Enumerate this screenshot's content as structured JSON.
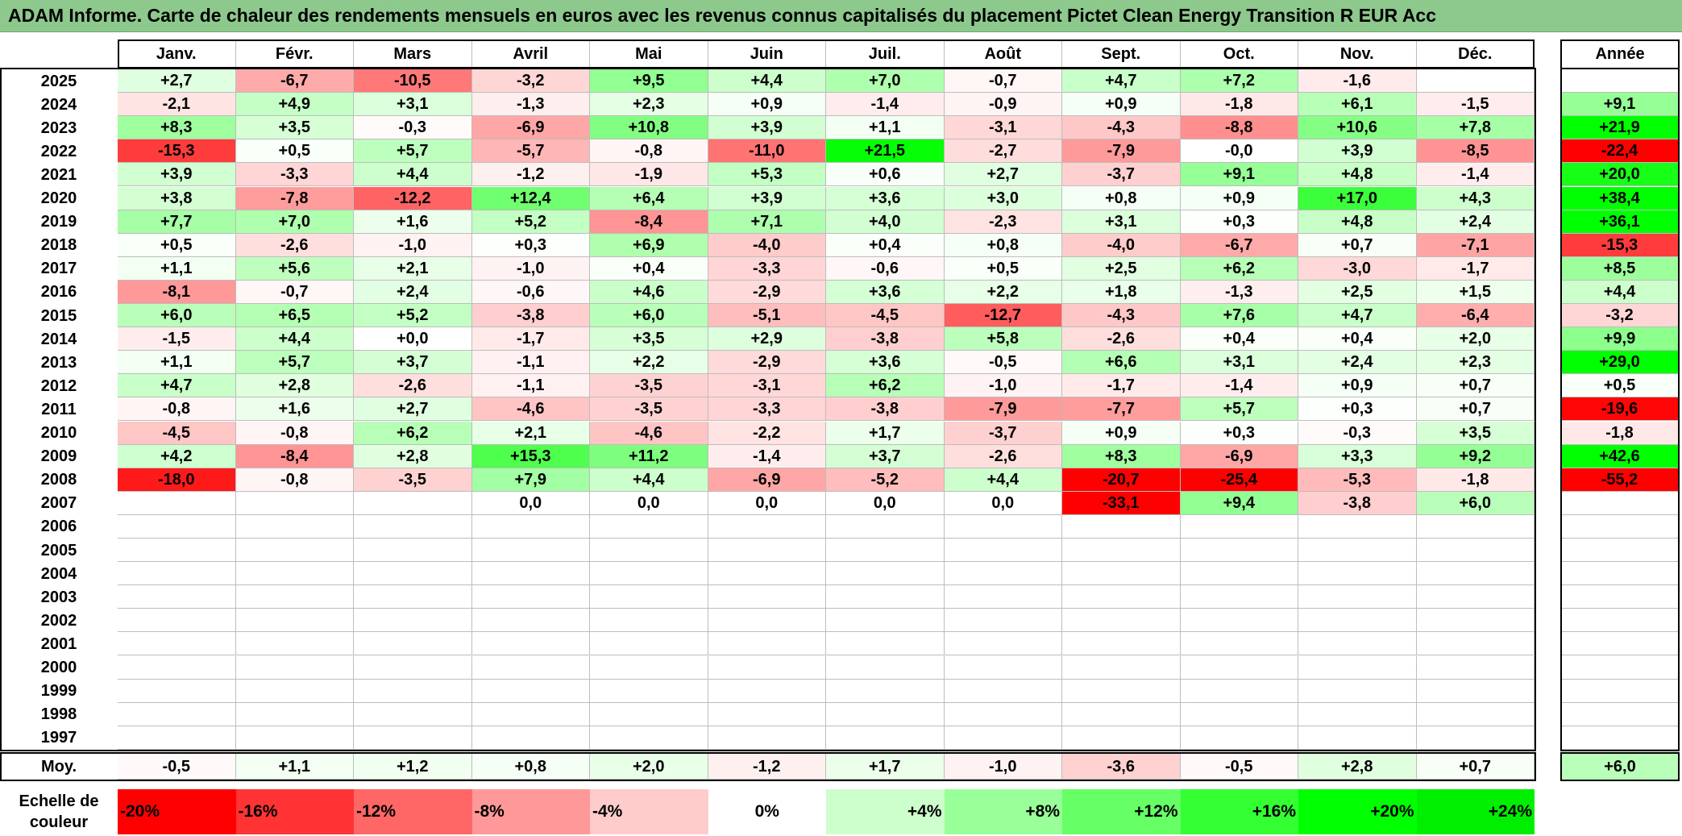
{
  "title": "ADAM Informe. Carte de chaleur des rendements mensuels en euros avec les revenus connus capitalisés du placement Pictet Clean Energy Transition R EUR Acc",
  "chart_data": {
    "type": "heatmap",
    "months": [
      "Janv.",
      "Févr.",
      "Mars",
      "Avril",
      "Mai",
      "Juin",
      "Juil.",
      "Août",
      "Sept.",
      "Oct.",
      "Nov.",
      "Déc."
    ],
    "year_header": "Année",
    "rows": [
      {
        "year": "2025",
        "values": [
          "+2,7",
          "-6,7",
          "-10,5",
          "-3,2",
          "+9,5",
          "+4,4",
          "+7,0",
          "-0,7",
          "+4,7",
          "+7,2",
          "-1,6",
          ""
        ],
        "annual": ""
      },
      {
        "year": "2024",
        "values": [
          "-2,1",
          "+4,9",
          "+3,1",
          "-1,3",
          "+2,3",
          "+0,9",
          "-1,4",
          "-0,9",
          "+0,9",
          "-1,8",
          "+6,1",
          "-1,5"
        ],
        "annual": "+9,1"
      },
      {
        "year": "2023",
        "values": [
          "+8,3",
          "+3,5",
          "-0,3",
          "-6,9",
          "+10,8",
          "+3,9",
          "+1,1",
          "-3,1",
          "-4,3",
          "-8,8",
          "+10,6",
          "+7,8"
        ],
        "annual": "+21,9"
      },
      {
        "year": "2022",
        "values": [
          "-15,3",
          "+0,5",
          "+5,7",
          "-5,7",
          "-0,8",
          "-11,0",
          "+21,5",
          "-2,7",
          "-7,9",
          "-0,0",
          "+3,9",
          "-8,5"
        ],
        "annual": "-22,4"
      },
      {
        "year": "2021",
        "values": [
          "+3,9",
          "-3,3",
          "+4,4",
          "-1,2",
          "-1,9",
          "+5,3",
          "+0,6",
          "+2,7",
          "-3,7",
          "+9,1",
          "+4,8",
          "-1,4"
        ],
        "annual": "+20,0"
      },
      {
        "year": "2020",
        "values": [
          "+3,8",
          "-7,8",
          "-12,2",
          "+12,4",
          "+6,4",
          "+3,9",
          "+3,6",
          "+3,0",
          "+0,8",
          "+0,9",
          "+17,0",
          "+4,3"
        ],
        "annual": "+38,4"
      },
      {
        "year": "2019",
        "values": [
          "+7,7",
          "+7,0",
          "+1,6",
          "+5,2",
          "-8,4",
          "+7,1",
          "+4,0",
          "-2,3",
          "+3,1",
          "+0,3",
          "+4,8",
          "+2,4"
        ],
        "annual": "+36,1"
      },
      {
        "year": "2018",
        "values": [
          "+0,5",
          "-2,6",
          "-1,0",
          "+0,3",
          "+6,9",
          "-4,0",
          "+0,4",
          "+0,8",
          "-4,0",
          "-6,7",
          "+0,7",
          "-7,1"
        ],
        "annual": "-15,3"
      },
      {
        "year": "2017",
        "values": [
          "+1,1",
          "+5,6",
          "+2,1",
          "-1,0",
          "+0,4",
          "-3,3",
          "-0,6",
          "+0,5",
          "+2,5",
          "+6,2",
          "-3,0",
          "-1,7"
        ],
        "annual": "+8,5"
      },
      {
        "year": "2016",
        "values": [
          "-8,1",
          "-0,7",
          "+2,4",
          "-0,6",
          "+4,6",
          "-2,9",
          "+3,6",
          "+2,2",
          "+1,8",
          "-1,3",
          "+2,5",
          "+1,5"
        ],
        "annual": "+4,4"
      },
      {
        "year": "2015",
        "values": [
          "+6,0",
          "+6,5",
          "+5,2",
          "-3,8",
          "+6,0",
          "-5,1",
          "-4,5",
          "-12,7",
          "-4,3",
          "+7,6",
          "+4,7",
          "-6,4"
        ],
        "annual": "-3,2"
      },
      {
        "year": "2014",
        "values": [
          "-1,5",
          "+4,4",
          "+0,0",
          "-1,7",
          "+3,5",
          "+2,9",
          "-3,8",
          "+5,8",
          "-2,6",
          "+0,4",
          "+0,4",
          "+2,0"
        ],
        "annual": "+9,9"
      },
      {
        "year": "2013",
        "values": [
          "+1,1",
          "+5,7",
          "+3,7",
          "-1,1",
          "+2,2",
          "-2,9",
          "+3,6",
          "-0,5",
          "+6,6",
          "+3,1",
          "+2,4",
          "+2,3"
        ],
        "annual": "+29,0"
      },
      {
        "year": "2012",
        "values": [
          "+4,7",
          "+2,8",
          "-2,6",
          "-1,1",
          "-3,5",
          "-3,1",
          "+6,2",
          "-1,0",
          "-1,7",
          "-1,4",
          "+0,9",
          "+0,7"
        ],
        "annual": "+0,5"
      },
      {
        "year": "2011",
        "values": [
          "-0,8",
          "+1,6",
          "+2,7",
          "-4,6",
          "-3,5",
          "-3,3",
          "-3,8",
          "-7,9",
          "-7,7",
          "+5,7",
          "+0,3",
          "+0,7"
        ],
        "annual": "-19,6"
      },
      {
        "year": "2010",
        "values": [
          "-4,5",
          "-0,8",
          "+6,2",
          "+2,1",
          "-4,6",
          "-2,2",
          "+1,7",
          "-3,7",
          "+0,9",
          "+0,3",
          "-0,3",
          "+3,5"
        ],
        "annual": "-1,8"
      },
      {
        "year": "2009",
        "values": [
          "+4,2",
          "-8,4",
          "+2,8",
          "+15,3",
          "+11,2",
          "-1,4",
          "+3,7",
          "-2,6",
          "+8,3",
          "-6,9",
          "+3,3",
          "+9,2"
        ],
        "annual": "+42,6"
      },
      {
        "year": "2008",
        "values": [
          "-18,0",
          "-0,8",
          "-3,5",
          "+7,9",
          "+4,4",
          "-6,9",
          "-5,2",
          "+4,4",
          "-20,7",
          "-25,4",
          "-5,3",
          "-1,8"
        ],
        "annual": "-55,2"
      },
      {
        "year": "2007",
        "values": [
          "",
          "",
          "",
          "0,0",
          "0,0",
          "0,0",
          "0,0",
          "0,0",
          "-33,1",
          "+9,4",
          "-3,8",
          "+6,0"
        ],
        "annual": ""
      },
      {
        "year": "2006",
        "values": [
          "",
          "",
          "",
          "",
          "",
          "",
          "",
          "",
          "",
          "",
          "",
          ""
        ],
        "annual": ""
      },
      {
        "year": "2005",
        "values": [
          "",
          "",
          "",
          "",
          "",
          "",
          "",
          "",
          "",
          "",
          "",
          ""
        ],
        "annual": ""
      },
      {
        "year": "2004",
        "values": [
          "",
          "",
          "",
          "",
          "",
          "",
          "",
          "",
          "",
          "",
          "",
          ""
        ],
        "annual": ""
      },
      {
        "year": "2003",
        "values": [
          "",
          "",
          "",
          "",
          "",
          "",
          "",
          "",
          "",
          "",
          "",
          ""
        ],
        "annual": ""
      },
      {
        "year": "2002",
        "values": [
          "",
          "",
          "",
          "",
          "",
          "",
          "",
          "",
          "",
          "",
          "",
          ""
        ],
        "annual": ""
      },
      {
        "year": "2001",
        "values": [
          "",
          "",
          "",
          "",
          "",
          "",
          "",
          "",
          "",
          "",
          "",
          ""
        ],
        "annual": ""
      },
      {
        "year": "2000",
        "values": [
          "",
          "",
          "",
          "",
          "",
          "",
          "",
          "",
          "",
          "",
          "",
          ""
        ],
        "annual": ""
      },
      {
        "year": "1999",
        "values": [
          "",
          "",
          "",
          "",
          "",
          "",
          "",
          "",
          "",
          "",
          "",
          ""
        ],
        "annual": ""
      },
      {
        "year": "1998",
        "values": [
          "",
          "",
          "",
          "",
          "",
          "",
          "",
          "",
          "",
          "",
          "",
          ""
        ],
        "annual": ""
      },
      {
        "year": "1997",
        "values": [
          "",
          "",
          "",
          "",
          "",
          "",
          "",
          "",
          "",
          "",
          "",
          ""
        ],
        "annual": ""
      }
    ],
    "average": {
      "label": "Moy.",
      "values": [
        "-0,5",
        "+1,1",
        "+1,2",
        "+0,8",
        "+2,0",
        "-1,2",
        "+1,7",
        "-1,0",
        "-3,6",
        "-0,5",
        "+2,8",
        "+0,7"
      ],
      "annual": "+6,0"
    },
    "color_scale": {
      "label_line1": "Echelle de",
      "label_line2": "couleur",
      "stops": [
        {
          "label": "-20%",
          "color": "#ff0000"
        },
        {
          "label": "-16%",
          "color": "#ff3333"
        },
        {
          "label": "-12%",
          "color": "#ff6666"
        },
        {
          "label": "-8%",
          "color": "#ff9999"
        },
        {
          "label": "-4%",
          "color": "#ffcccc"
        },
        {
          "label": "0%",
          "color": "#ffffff"
        },
        {
          "label": "+4%",
          "color": "#ccffcc"
        },
        {
          "label": "+8%",
          "color": "#99ff99"
        },
        {
          "label": "+12%",
          "color": "#66ff66"
        },
        {
          "label": "+16%",
          "color": "#33ff33"
        },
        {
          "label": "+20%",
          "color": "#00ff00"
        },
        {
          "label": "+24%",
          "color": "#00ee00"
        }
      ]
    }
  },
  "colors": {
    "title_bar": "#8dc98d",
    "negative_max": "#ff0000",
    "positive_max": "#00ff00",
    "neutral": "#ffffff"
  }
}
